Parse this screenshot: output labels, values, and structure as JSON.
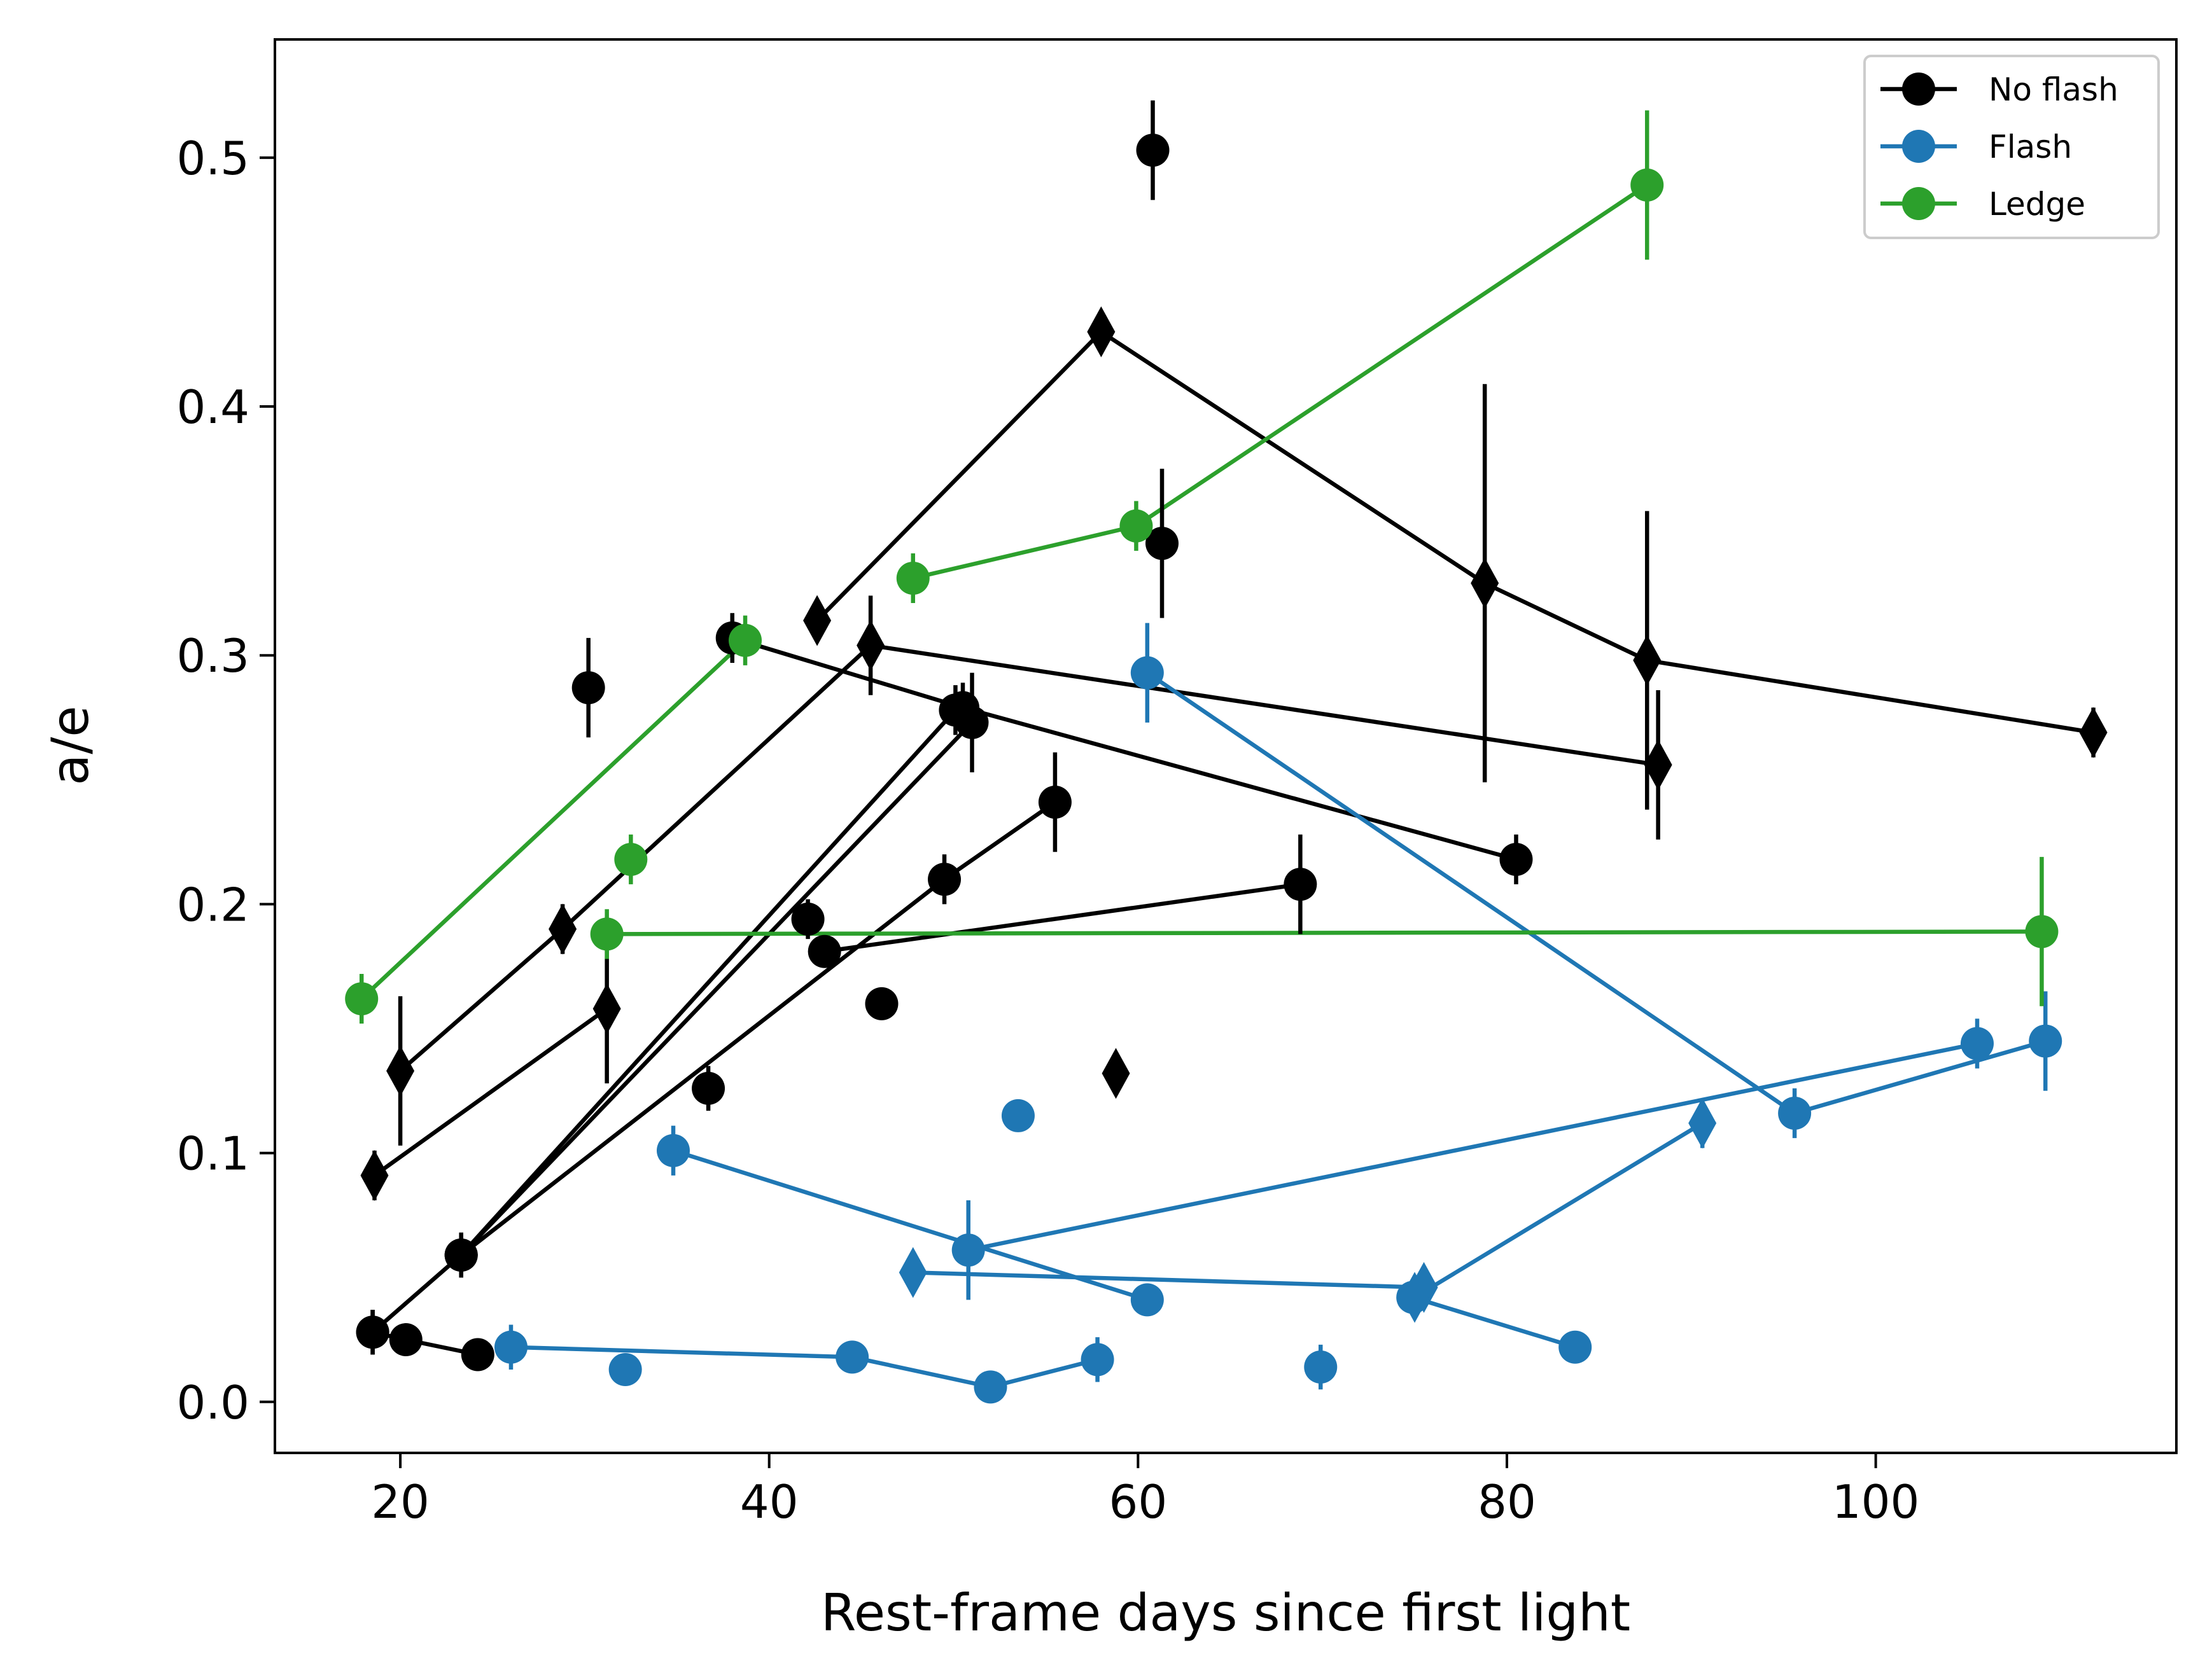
{
  "chart_data": {
    "type": "scatter",
    "title": "",
    "xlabel": "Rest-frame days since first light",
    "ylabel": "a/e",
    "xlim": [
      13.2,
      116.3
    ],
    "ylim": [
      -0.0205,
      0.5475
    ],
    "xticks": [
      20,
      40,
      60,
      80,
      100
    ],
    "yticks": [
      0.0,
      0.1,
      0.2,
      0.3,
      0.4,
      0.5
    ],
    "xtick_labels": [
      "20",
      "40",
      "60",
      "80",
      "100"
    ],
    "ytick_labels": [
      "0.0",
      "0.1",
      "0.2",
      "0.3",
      "0.4",
      "0.5"
    ],
    "legend": {
      "position": "top-right",
      "entries": [
        {
          "label": "No flash",
          "color": "#000000"
        },
        {
          "label": "Flash",
          "color": "#1f77b4"
        },
        {
          "label": "Ledge",
          "color": "#2ca02c"
        }
      ]
    },
    "groups": [
      {
        "category": "No flash",
        "color": "#000000",
        "marker": "circle",
        "connected": true,
        "points": [
          {
            "x": 18.5,
            "y": 0.028,
            "err": 0.009
          },
          {
            "x": 20.3,
            "y": 0.025,
            "err": 0.005
          },
          {
            "x": 24.2,
            "y": 0.019,
            "err": 0.005
          }
        ]
      },
      {
        "category": "No flash",
        "color": "#000000",
        "marker": "circle",
        "connected": true,
        "points": [
          {
            "x": 18.5,
            "y": 0.028,
            "err": 0.009
          },
          {
            "x": 23.3,
            "y": 0.059,
            "err": 0.009
          },
          {
            "x": 50.1,
            "y": 0.278,
            "err": 0.01
          }
        ]
      },
      {
        "category": "No flash",
        "color": "#000000",
        "marker": "circle",
        "connected": true,
        "points": [
          {
            "x": 23.3,
            "y": 0.059,
            "err": 0.009
          },
          {
            "x": 49.5,
            "y": 0.21,
            "err": 0.01
          },
          {
            "x": 55.5,
            "y": 0.241,
            "err": 0.02
          }
        ]
      },
      {
        "category": "No flash",
        "color": "#000000",
        "marker": "circle",
        "connected": true,
        "points": [
          {
            "x": 23.3,
            "y": 0.059,
            "err": 0.009
          },
          {
            "x": 51.0,
            "y": 0.273,
            "err": 0.02
          }
        ]
      },
      {
        "category": "No flash",
        "color": "#000000",
        "marker": "circle",
        "connected": true,
        "points": [
          {
            "x": 38.0,
            "y": 0.307,
            "err": 0.01
          },
          {
            "x": 50.5,
            "y": 0.279,
            "err": 0.01
          },
          {
            "x": 80.5,
            "y": 0.218,
            "err": 0.01
          }
        ]
      },
      {
        "category": "No flash",
        "color": "#000000",
        "marker": "circle",
        "connected": true,
        "points": [
          {
            "x": 43.0,
            "y": 0.181,
            "err": 0.005
          },
          {
            "x": 68.8,
            "y": 0.208,
            "err": 0.02
          }
        ]
      },
      {
        "category": "No flash",
        "color": "#000000",
        "marker": "diamond",
        "connected": true,
        "points": [
          {
            "x": 18.6,
            "y": 0.091,
            "err": 0.01
          },
          {
            "x": 31.2,
            "y": 0.158,
            "err": 0.03
          }
        ]
      },
      {
        "category": "No flash",
        "color": "#000000",
        "marker": "diamond",
        "connected": true,
        "points": [
          {
            "x": 20.0,
            "y": 0.133,
            "err": 0.03
          },
          {
            "x": 28.8,
            "y": 0.19,
            "err": 0.01
          },
          {
            "x": 45.5,
            "y": 0.304,
            "err": 0.02
          },
          {
            "x": 88.2,
            "y": 0.256,
            "err": 0.03
          }
        ]
      },
      {
        "category": "No flash",
        "color": "#000000",
        "marker": "diamond",
        "connected": true,
        "points": [
          {
            "x": 42.6,
            "y": 0.314,
            "err": 0.005
          },
          {
            "x": 58.0,
            "y": 0.43,
            "err": 0.008
          },
          {
            "x": 78.8,
            "y": 0.329,
            "err": 0.08
          },
          {
            "x": 87.6,
            "y": 0.298,
            "err": 0.06
          },
          {
            "x": 111.8,
            "y": 0.269,
            "err": 0.01
          }
        ]
      },
      {
        "category": "No flash",
        "color": "#000000",
        "marker": "circle",
        "connected": false,
        "points": [
          {
            "x": 60.8,
            "y": 0.503,
            "err": 0.02
          },
          {
            "x": 61.3,
            "y": 0.345,
            "err": 0.03
          },
          {
            "x": 30.2,
            "y": 0.287,
            "err": 0.02
          },
          {
            "x": 42.1,
            "y": 0.194,
            "err": 0.008
          },
          {
            "x": 46.1,
            "y": 0.16,
            "err": 0.003
          },
          {
            "x": 36.7,
            "y": 0.126,
            "err": 0.009
          }
        ]
      },
      {
        "category": "No flash",
        "color": "#000000",
        "marker": "diamond",
        "connected": false,
        "points": [
          {
            "x": 58.8,
            "y": 0.132,
            "err": 0.005
          }
        ]
      },
      {
        "category": "Flash",
        "color": "#1f77b4",
        "marker": "circle",
        "connected": true,
        "points": [
          {
            "x": 26.0,
            "y": 0.022,
            "err": 0.009
          },
          {
            "x": 44.5,
            "y": 0.018,
            "err": 0.005
          },
          {
            "x": 52.0,
            "y": 0.006,
            "err": 0.005
          },
          {
            "x": 57.8,
            "y": 0.017,
            "err": 0.009
          }
        ]
      },
      {
        "category": "Flash",
        "color": "#1f77b4",
        "marker": "circle",
        "connected": true,
        "points": [
          {
            "x": 34.8,
            "y": 0.101,
            "err": 0.01
          },
          {
            "x": 60.5,
            "y": 0.041,
            "err": 0.005
          }
        ]
      },
      {
        "category": "Flash",
        "color": "#1f77b4",
        "marker": "circle",
        "connected": true,
        "points": [
          {
            "x": 50.8,
            "y": 0.061,
            "err": 0.02
          },
          {
            "x": 105.5,
            "y": 0.144,
            "err": 0.01
          }
        ]
      },
      {
        "category": "Flash",
        "color": "#1f77b4",
        "marker": "circle",
        "connected": true,
        "points": [
          {
            "x": 60.5,
            "y": 0.293,
            "err": 0.02
          },
          {
            "x": 95.6,
            "y": 0.116,
            "err": 0.01
          },
          {
            "x": 109.2,
            "y": 0.145,
            "err": 0.02
          }
        ]
      },
      {
        "category": "Flash",
        "color": "#1f77b4",
        "marker": "circle",
        "connected": true,
        "points": [
          {
            "x": 74.9,
            "y": 0.042,
            "err": 0.005
          },
          {
            "x": 83.7,
            "y": 0.022,
            "err": 0.005
          }
        ]
      },
      {
        "category": "Flash",
        "color": "#1f77b4",
        "marker": "diamond",
        "connected": true,
        "points": [
          {
            "x": 47.8,
            "y": 0.052,
            "err": 0.005
          },
          {
            "x": 75.5,
            "y": 0.046,
            "err": 0.005
          }
        ]
      },
      {
        "category": "Flash",
        "color": "#1f77b4",
        "marker": "diamond",
        "connected": true,
        "points": [
          {
            "x": 75.0,
            "y": 0.042,
            "err": 0.005
          },
          {
            "x": 90.6,
            "y": 0.112,
            "err": 0.01
          }
        ]
      },
      {
        "category": "Flash",
        "color": "#1f77b4",
        "marker": "circle",
        "connected": false,
        "points": [
          {
            "x": 32.2,
            "y": 0.013,
            "err": 0.005
          },
          {
            "x": 53.5,
            "y": 0.115,
            "err": 0.003
          },
          {
            "x": 69.9,
            "y": 0.014,
            "err": 0.009
          }
        ]
      },
      {
        "category": "Ledge",
        "color": "#2ca02c",
        "marker": "circle",
        "connected": true,
        "points": [
          {
            "x": 17.9,
            "y": 0.162,
            "err": 0.01
          },
          {
            "x": 38.7,
            "y": 0.306,
            "err": 0.01
          }
        ]
      },
      {
        "category": "Ledge",
        "color": "#2ca02c",
        "marker": "circle",
        "connected": true,
        "points": [
          {
            "x": 31.2,
            "y": 0.188,
            "err": 0.01
          },
          {
            "x": 109.0,
            "y": 0.189,
            "err": 0.03
          }
        ]
      },
      {
        "category": "Ledge",
        "color": "#2ca02c",
        "marker": "circle",
        "connected": true,
        "points": [
          {
            "x": 47.8,
            "y": 0.331,
            "err": 0.01
          },
          {
            "x": 59.9,
            "y": 0.352,
            "err": 0.01
          },
          {
            "x": 87.6,
            "y": 0.489,
            "err": 0.03
          }
        ]
      },
      {
        "category": "Ledge",
        "color": "#2ca02c",
        "marker": "circle",
        "connected": false,
        "points": [
          {
            "x": 32.5,
            "y": 0.218,
            "err": 0.01
          }
        ]
      }
    ]
  }
}
